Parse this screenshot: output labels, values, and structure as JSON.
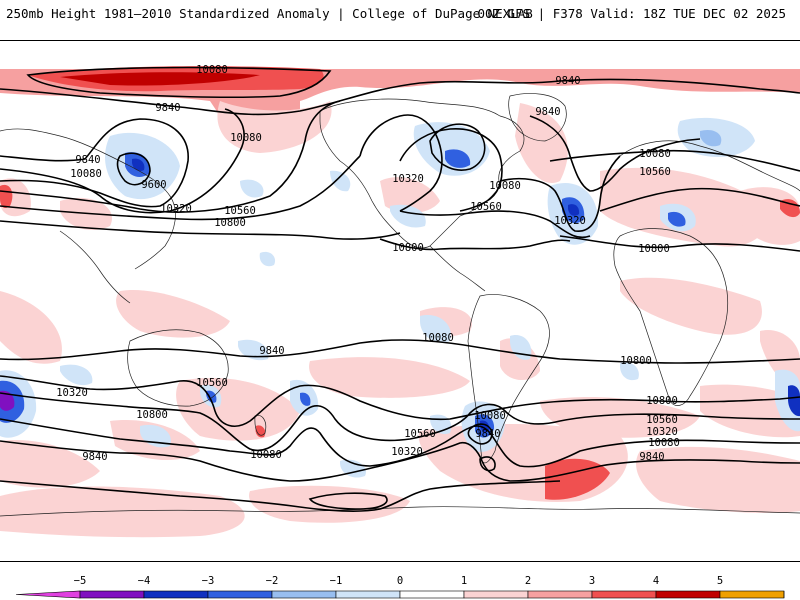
{
  "header": {
    "left_title": "250mb Height 1981–2010 Standardized Anomaly | College of DuPage NEXLAB",
    "right_title": "00Z GFS | F378 Valid: 18Z TUE DEC 02 2025"
  },
  "map": {
    "contour_labels": [
      "10080",
      "9840",
      "9840",
      "10080",
      "9840",
      "10080",
      "9600",
      "10320",
      "10560",
      "10800",
      "9840",
      "10080",
      "10560",
      "10320",
      "10080",
      "10560",
      "10320",
      "10800",
      "10800",
      "10080",
      "9840",
      "10800",
      "10560",
      "10320",
      "10800",
      "10800",
      "10560",
      "10320",
      "10080",
      "9840",
      "10560",
      "10320",
      "10080",
      "9840",
      "10080",
      "9840"
    ]
  },
  "colorbar": {
    "tick_labels": [
      "−5",
      "−4",
      "−3",
      "−2",
      "−1",
      "0",
      "1",
      "2",
      "3",
      "4",
      "5"
    ],
    "colors": [
      "#e040e0",
      "#8010c0",
      "#1030c0",
      "#3060e0",
      "#98bef0",
      "#d0e4f8",
      "#ffffff",
      "#fbd3d3",
      "#f6a0a0",
      "#f05050",
      "#c00000",
      "#f0a000",
      "#ffd030"
    ]
  }
}
